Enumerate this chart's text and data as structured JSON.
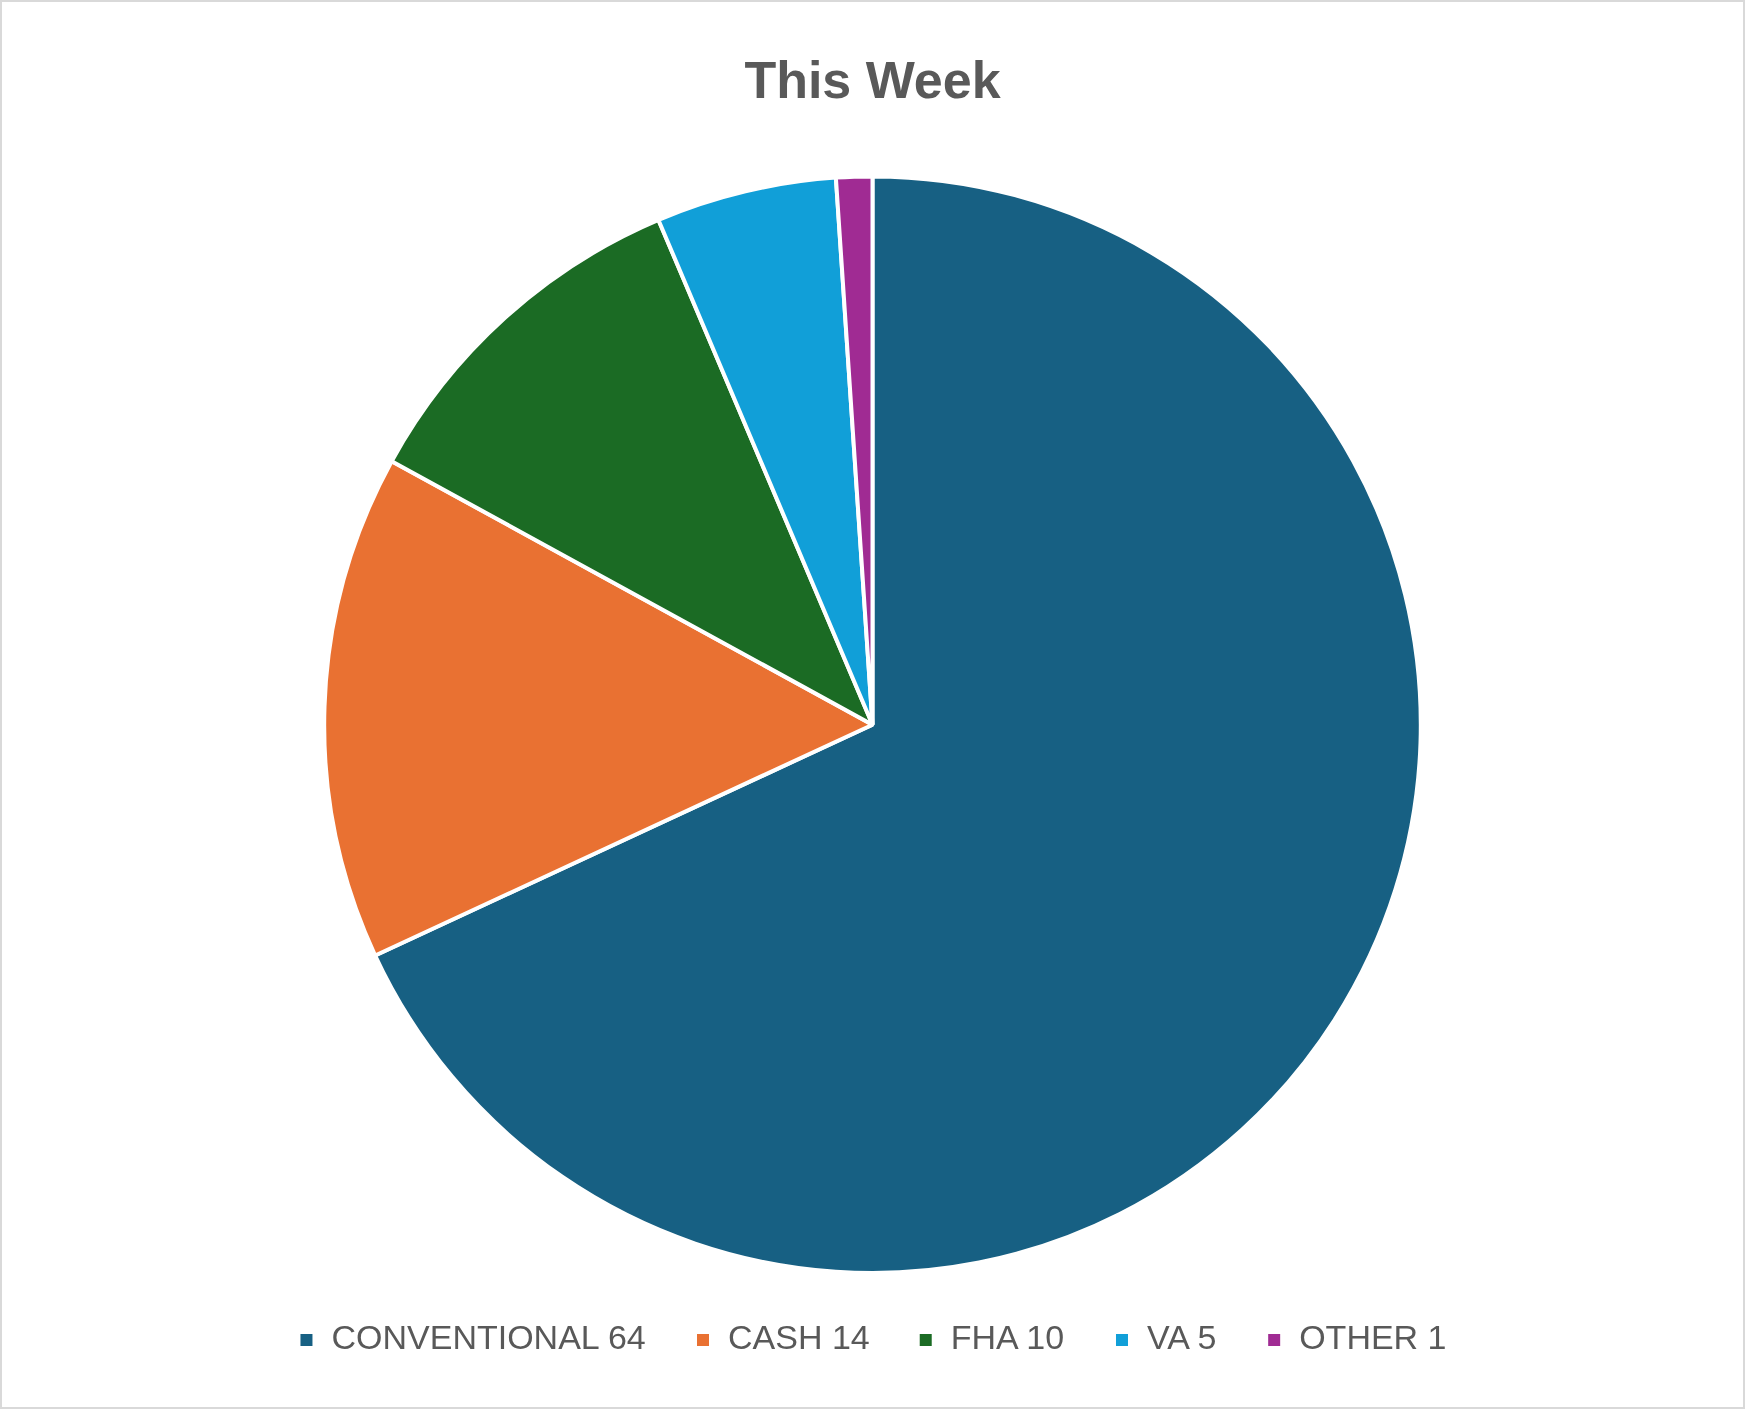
{
  "chart_data": {
    "type": "pie",
    "title": "This Week",
    "categories": [
      "CONVENTIONAL 64",
      "CASH 14",
      "FHA 10",
      "VA 5",
      "OTHER 1"
    ],
    "values": [
      64,
      14,
      10,
      5,
      1
    ],
    "colors": [
      "#176083",
      "#e97132",
      "#1b6b24",
      "#119fd8",
      "#a02b93"
    ],
    "legend": "bottom"
  }
}
